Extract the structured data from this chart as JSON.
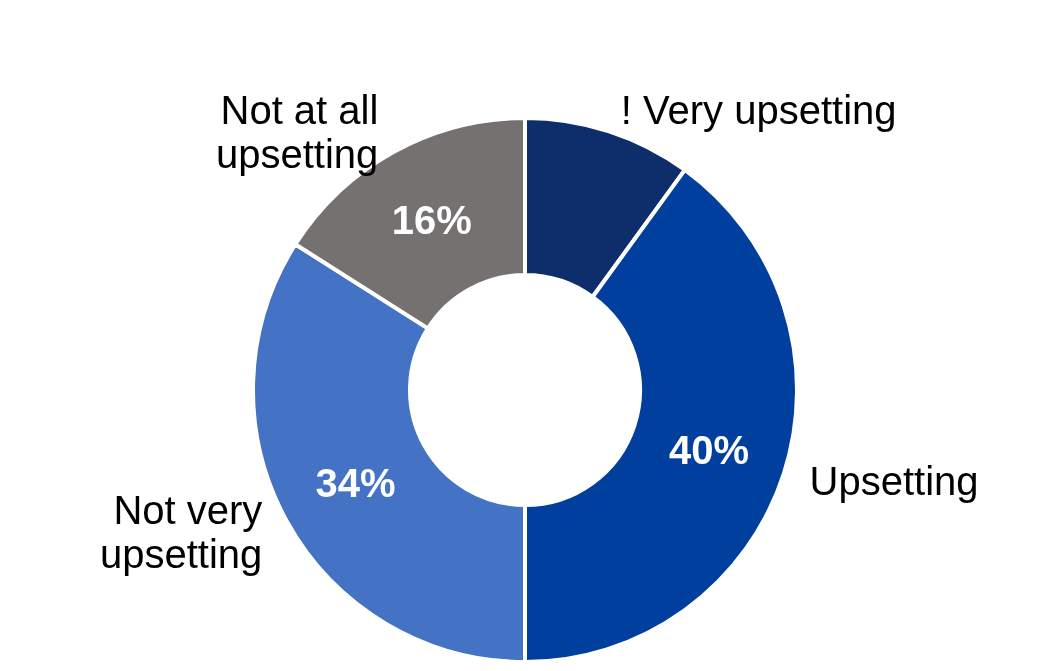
{
  "chart_data": {
    "type": "donut",
    "categories": [
      "! Very upsetting",
      "Upsetting",
      "Not very\nupsetting",
      "Not at all\nupsetting"
    ],
    "values": [
      10,
      40,
      34,
      16
    ],
    "colors": [
      "#0d2d6b",
      "#003f9e",
      "#4472c4",
      "#757171"
    ],
    "value_labels": [
      null,
      "40%",
      "34%",
      "16%"
    ],
    "legend": false
  }
}
